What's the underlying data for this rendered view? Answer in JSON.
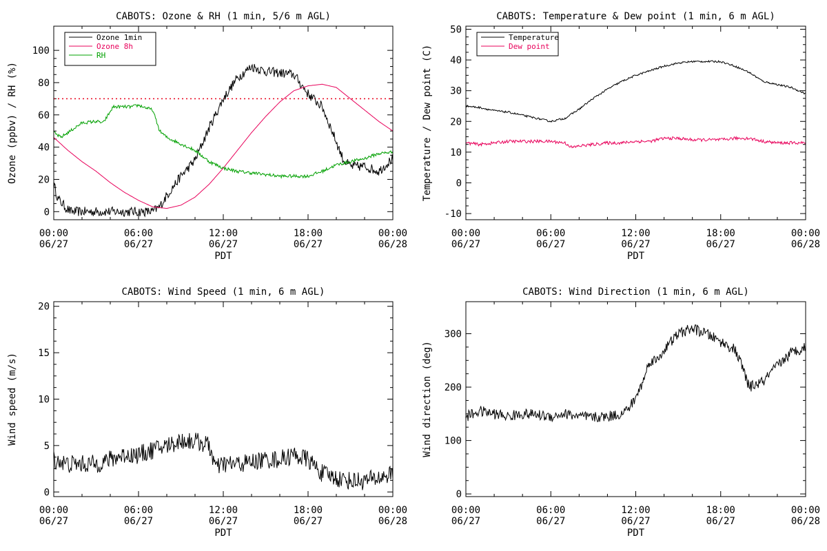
{
  "x_axis": {
    "xlabel": "PDT",
    "tick_times": [
      "00:00",
      "06:00",
      "12:00",
      "18:00",
      "00:00"
    ],
    "tick_dates": [
      "06/27",
      "06/27",
      "06/27",
      "06/27",
      "06/28"
    ],
    "xlim_hours": [
      0,
      24
    ]
  },
  "chart_data": [
    {
      "id": "ozone",
      "type": "line",
      "title": "CABOTS: Ozone & RH (1 min, 5/6 m AGL)",
      "ylabel": "Ozone (ppbv) / RH (%)",
      "ylim": [
        -5,
        115
      ],
      "yticks": [
        0,
        20,
        40,
        60,
        80,
        100
      ],
      "legend_position": "top-left",
      "reference_line": {
        "y": 70,
        "color": "#e8001a",
        "style": "dotted"
      },
      "series": [
        {
          "name": "Ozone 1min",
          "color": "#000000",
          "noise": 3,
          "x": [
            0,
            0.3,
            0.8,
            1.2,
            2,
            4,
            6,
            7,
            7.5,
            8,
            9,
            10,
            11,
            12,
            13,
            14,
            15,
            16,
            17,
            18,
            19,
            19.7,
            20.5,
            21,
            22,
            23,
            24
          ],
          "y": [
            17,
            8,
            3,
            0,
            0,
            0,
            0,
            0,
            3,
            10,
            22,
            32,
            52,
            70,
            83,
            90,
            87,
            86,
            85,
            73,
            65,
            50,
            32,
            28,
            28,
            25,
            33
          ]
        },
        {
          "name": "Ozone 8h",
          "color": "#e8005a",
          "noise": 0,
          "x": [
            0,
            1,
            2,
            3,
            4,
            5,
            6,
            7,
            8,
            9,
            10,
            11,
            12,
            13,
            14,
            15,
            16,
            17,
            18,
            19,
            20,
            21,
            22,
            23,
            24
          ],
          "y": [
            46,
            38,
            31,
            25,
            18,
            12,
            7,
            3,
            2,
            4,
            9,
            17,
            27,
            38,
            49,
            59,
            68,
            75,
            78,
            79,
            77,
            70,
            63,
            56,
            50
          ]
        },
        {
          "name": "RH",
          "color": "#00a000",
          "noise": 1,
          "x": [
            0,
            0.5,
            1,
            1.5,
            2,
            3,
            3.5,
            4,
            4.2,
            5,
            5.5,
            6,
            7,
            7.5,
            8,
            9,
            10,
            11,
            12,
            13,
            14,
            15,
            16,
            17,
            18,
            19,
            20,
            21,
            22,
            23,
            24
          ],
          "y": [
            49,
            46,
            49,
            52,
            55,
            56,
            55,
            62,
            65,
            65,
            65,
            66,
            63,
            50,
            46,
            42,
            38,
            31,
            27,
            25,
            24,
            23,
            22,
            22,
            22,
            25,
            29,
            31,
            33,
            36,
            37
          ]
        }
      ]
    },
    {
      "id": "temp",
      "type": "line",
      "title": "CABOTS: Temperature & Dew point (1 min, 6 m AGL)",
      "ylabel": "Temperature / Dew point (C)",
      "ylim": [
        -12,
        51
      ],
      "yticks": [
        -10,
        0,
        10,
        20,
        30,
        40,
        50
      ],
      "legend_position": "top-left",
      "series": [
        {
          "name": "Temperature",
          "color": "#000000",
          "noise": 0.3,
          "x": [
            0,
            1,
            2,
            3,
            4,
            5,
            6,
            7,
            8,
            9,
            10,
            11,
            12,
            13,
            14,
            15,
            16,
            17,
            18,
            19,
            20,
            21,
            22,
            23,
            24
          ],
          "y": [
            25,
            24.5,
            23.5,
            23,
            22,
            21,
            20,
            21,
            24,
            27.5,
            30.5,
            33,
            35,
            36.5,
            38,
            39,
            39.5,
            39.5,
            39.5,
            38,
            36,
            33,
            32,
            31,
            29
          ]
        },
        {
          "name": "Dew point",
          "color": "#e8005a",
          "noise": 0.5,
          "x": [
            0,
            1,
            2,
            3,
            4,
            5,
            6,
            7,
            7.5,
            8,
            9,
            10,
            11,
            12,
            13,
            14,
            15,
            16,
            17,
            18,
            19,
            20,
            21,
            22,
            23,
            24
          ],
          "y": [
            13,
            12.5,
            13,
            13.5,
            13.5,
            13.5,
            13.5,
            13,
            11.5,
            12,
            12.5,
            13,
            13,
            13.5,
            13.5,
            14.5,
            14.5,
            14,
            14,
            14,
            14.5,
            14.5,
            13.5,
            13,
            13,
            13
          ]
        }
      ]
    },
    {
      "id": "wspd",
      "type": "line",
      "title": "CABOTS: Wind Speed (1 min, 6 m AGL)",
      "ylabel": "Wind speed (m/s)",
      "ylim": [
        -0.5,
        20.5
      ],
      "yticks": [
        0,
        5,
        10,
        15,
        20
      ],
      "series": [
        {
          "name": "",
          "color": "#000000",
          "noise": 1.0,
          "x": [
            0,
            1,
            2,
            3,
            4,
            5,
            6,
            7,
            8,
            9,
            10,
            11,
            11.5,
            12,
            13,
            14,
            15,
            16,
            17,
            18,
            19,
            20,
            21,
            22,
            23,
            24
          ],
          "y": [
            3.5,
            3,
            3,
            3,
            3.5,
            4,
            4,
            4.5,
            5,
            5.5,
            5.5,
            5,
            2.5,
            3,
            3,
            3.2,
            3.5,
            3.5,
            4,
            3.5,
            2,
            1.5,
            1.2,
            1.2,
            1.5,
            2
          ]
        }
      ]
    },
    {
      "id": "wdir",
      "type": "line",
      "title": "CABOTS: Wind Direction (1 min, 6 m AGL)",
      "ylabel": "Wind direction (deg)",
      "ylim": [
        -5,
        360
      ],
      "yticks": [
        0,
        100,
        200,
        300
      ],
      "series": [
        {
          "name": "",
          "color": "#000000",
          "noise": 10,
          "x": [
            0,
            1,
            2,
            3,
            4,
            5,
            6,
            7,
            8,
            9,
            10,
            11,
            11.5,
            12,
            12.5,
            13,
            13.5,
            14,
            15,
            16,
            17,
            18,
            19,
            19.5,
            20,
            21,
            22,
            23,
            24
          ],
          "y": [
            145,
            155,
            150,
            145,
            150,
            148,
            145,
            150,
            145,
            143,
            145,
            150,
            160,
            180,
            210,
            250,
            250,
            270,
            300,
            310,
            300,
            285,
            270,
            240,
            200,
            210,
            240,
            265,
            275
          ]
        }
      ]
    }
  ]
}
